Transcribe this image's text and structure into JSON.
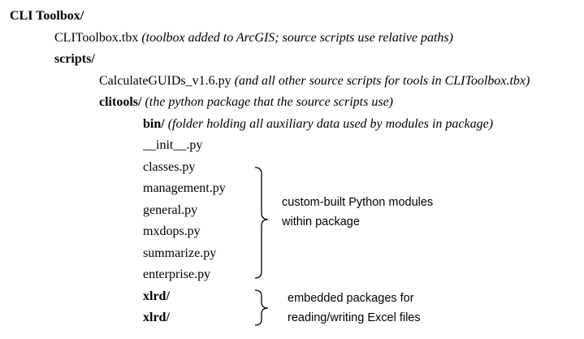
{
  "tree": {
    "root": {
      "name": "CLI Toolbox/"
    },
    "toolbox_file": {
      "name": "CLIToolbox.tbx",
      "note": "(toolbox added to ArcGIS; source scripts use relative paths)"
    },
    "scripts": {
      "name": "scripts/"
    },
    "source_script": {
      "name": "CalculateGUIDs_v1.6.py",
      "note": "(and all other source scripts for tools in CLIToolbox.tbx)"
    },
    "clitools": {
      "name": "clitools/",
      "note": "(the python package that the source scripts use)"
    },
    "bin": {
      "name": "bin/",
      "note": "(folder holding all auxiliary data used by modules in package)"
    },
    "modules": [
      "__init__.py",
      "classes.py",
      "management.py",
      "general.py",
      "mxdops.py",
      "summarize.py",
      "enterprise.py"
    ],
    "packages": [
      "xlrd/",
      "xlrd/"
    ]
  },
  "annotations": {
    "modules_line1": "custom-built Python modules",
    "modules_line2": "within package",
    "packages_line1": "embedded packages for",
    "packages_line2": "reading/writing Excel files"
  }
}
